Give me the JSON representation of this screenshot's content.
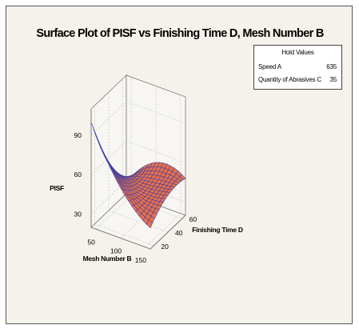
{
  "chart_data": {
    "type": "surface",
    "title": "Surface Plot of PISF vs Finishing Time D, Mesh Number B",
    "xlabel": "Mesh Number B",
    "ylabel": "Finishing Time D",
    "zlabel": "PISF",
    "x_ticks": [
      "50",
      "100",
      "150"
    ],
    "y_ticks": [
      "20",
      "40",
      "60"
    ],
    "z_ticks": [
      "30",
      "60",
      "90"
    ],
    "xlim": [
      40,
      160
    ],
    "ylim": [
      15,
      65
    ],
    "zlim": [
      20,
      110
    ],
    "grid": true,
    "surface_color": "#e8704a",
    "mesh_color": "#3a3fa8",
    "surface_points": [
      {
        "x": 40,
        "y": 15,
        "z": 100
      },
      {
        "x": 40,
        "y": 40,
        "z": 55
      },
      {
        "x": 40,
        "y": 65,
        "z": 28
      },
      {
        "x": 100,
        "y": 15,
        "z": 58
      },
      {
        "x": 100,
        "y": 40,
        "z": 46
      },
      {
        "x": 100,
        "y": 65,
        "z": 52
      },
      {
        "x": 160,
        "y": 15,
        "z": 36
      },
      {
        "x": 160,
        "y": 40,
        "z": 48
      },
      {
        "x": 160,
        "y": 65,
        "z": 48
      }
    ]
  },
  "hold_values": {
    "title": "Hold Values",
    "items": [
      {
        "name": "Speed A",
        "value": "635"
      },
      {
        "name": "Quantity of Abrasives C",
        "value": "35"
      }
    ]
  }
}
